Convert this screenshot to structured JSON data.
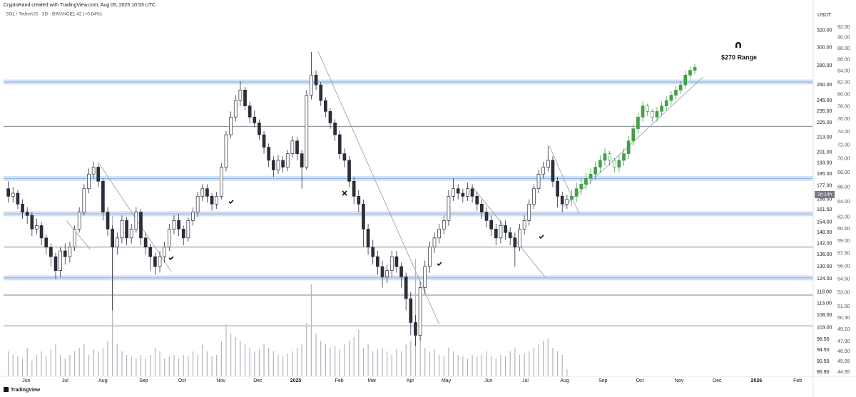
{
  "chart_data": {
    "type": "candlestick",
    "created": "CryptoRand created with TradingView.com, Aug 05, 2025 10:53 UTC",
    "symbol": "SOL / TetherUS · 3D · BINANCE",
    "change": "+1.42 (+0.84%)",
    "currency": "USDT",
    "countdown": "2d 14h",
    "annotation": "$270 Range",
    "branding": "TradingView",
    "log_scale": true,
    "ylim": [
      85.5,
      331.4
    ],
    "yticks": [
      {
        "value": 320,
        "label": "320.00"
      },
      {
        "value": 300,
        "label": "300.00"
      },
      {
        "value": 280,
        "label": "280.00"
      },
      {
        "value": 260,
        "label": "260.00"
      },
      {
        "value": 245,
        "label": "245.00"
      },
      {
        "value": 235,
        "label": "235.00"
      },
      {
        "value": 225,
        "label": "225.00"
      },
      {
        "value": 213,
        "label": "213.00"
      },
      {
        "value": 201,
        "label": "201.00"
      },
      {
        "value": 193,
        "label": "193.00"
      },
      {
        "value": 185,
        "label": "185.00"
      },
      {
        "value": 177,
        "label": "177.00"
      },
      {
        "value": 168,
        "label": "168.00"
      },
      {
        "value": 161.5,
        "label": "161.50"
      },
      {
        "value": 154,
        "label": "154.00"
      },
      {
        "value": 148,
        "label": "148.00"
      },
      {
        "value": 142,
        "label": "142.00"
      },
      {
        "value": 136,
        "label": "136.00"
      },
      {
        "value": 130,
        "label": "130.00"
      },
      {
        "value": 124,
        "label": "124.00"
      },
      {
        "value": 118,
        "label": "118.00"
      },
      {
        "value": 113,
        "label": "113.00"
      },
      {
        "value": 108,
        "label": "108.00"
      },
      {
        "value": 103,
        "label": "103.00"
      },
      {
        "value": 98.5,
        "label": "98.50"
      },
      {
        "value": 94.5,
        "label": "94.50"
      },
      {
        "value": 90.5,
        "label": "90.50"
      },
      {
        "value": 86.9,
        "label": "86.90"
      }
    ],
    "y2lim": [
      44.55,
      93.1
    ],
    "y2ticks": [
      {
        "value": 92,
        "label": "92.00"
      },
      {
        "value": 90,
        "label": "90.00"
      },
      {
        "value": 88,
        "label": "88.00"
      },
      {
        "value": 86,
        "label": "86.00"
      },
      {
        "value": 84,
        "label": "84.00"
      },
      {
        "value": 82,
        "label": "82.00"
      },
      {
        "value": 80,
        "label": "80.00"
      },
      {
        "value": 78,
        "label": "78.00"
      },
      {
        "value": 76,
        "label": "76.00"
      },
      {
        "value": 74,
        "label": "74.00"
      },
      {
        "value": 72,
        "label": "72.00"
      },
      {
        "value": 70,
        "label": "70.00"
      },
      {
        "value": 68,
        "label": "68.00"
      },
      {
        "value": 66,
        "label": "66.00"
      },
      {
        "value": 64,
        "label": "64.00"
      },
      {
        "value": 62,
        "label": "62.00"
      },
      {
        "value": 60.5,
        "label": "60.50"
      },
      {
        "value": 59,
        "label": "59.00"
      },
      {
        "value": 57.5,
        "label": "57.50"
      },
      {
        "value": 56,
        "label": "56.00"
      },
      {
        "value": 54.5,
        "label": "54.50"
      },
      {
        "value": 53,
        "label": "53.00"
      },
      {
        "value": 51.5,
        "label": "51.50"
      },
      {
        "value": 50.3,
        "label": "50.30"
      },
      {
        "value": 49.1,
        "label": "49.10"
      },
      {
        "value": 47.9,
        "label": "47.90"
      },
      {
        "value": 46.9,
        "label": "46.90"
      },
      {
        "value": 45.95,
        "label": "45.95"
      },
      {
        "value": 44.95,
        "label": "44.95"
      }
    ],
    "xlim": [
      -1,
      170
    ],
    "xticks": [
      {
        "value": 3.8,
        "label": "Jun"
      },
      {
        "value": 12,
        "label": "Jul"
      },
      {
        "value": 20,
        "label": "Aug"
      },
      {
        "value": 28.6,
        "label": "Sep"
      },
      {
        "value": 36.7,
        "label": "Oct"
      },
      {
        "value": 44.9,
        "label": "Nov"
      },
      {
        "value": 52.7,
        "label": "Dec"
      },
      {
        "value": 60.7,
        "label": "2025"
      },
      {
        "value": 69.9,
        "label": "Feb"
      },
      {
        "value": 76.8,
        "label": "Mar"
      },
      {
        "value": 84.9,
        "label": "Apr"
      },
      {
        "value": 92.5,
        "label": "May"
      },
      {
        "value": 101.4,
        "label": "Jun"
      },
      {
        "value": 109.2,
        "label": "Jul"
      },
      {
        "value": 117.5,
        "label": "Aug"
      },
      {
        "value": 125.6,
        "label": "Sep"
      },
      {
        "value": 133.4,
        "label": "Oct"
      },
      {
        "value": 141.7,
        "label": "Nov"
      },
      {
        "value": 149.7,
        "label": "Dec"
      },
      {
        "value": 158,
        "label": "2026"
      },
      {
        "value": 166.7,
        "label": "Feb"
      }
    ],
    "candles": {
      "up_color": "#ffffff",
      "down_color": "#2a2e39",
      "outline": "#2a2e39",
      "open": [
        175,
        170,
        172,
        165,
        160,
        158,
        150,
        152,
        145,
        140,
        135,
        128,
        138,
        135,
        140,
        150,
        160,
        175,
        185,
        190,
        180,
        160,
        150,
        140,
        145,
        155,
        145,
        150,
        160,
        145,
        140,
        135,
        130,
        135,
        140,
        150,
        155,
        150,
        145,
        155,
        160,
        170,
        175,
        170,
        165,
        170,
        190,
        215,
        230,
        245,
        255,
        240,
        230,
        225,
        215,
        205,
        195,
        188,
        195,
        190,
        200,
        210,
        200,
        190,
        250,
        270,
        260,
        245,
        235,
        225,
        215,
        200,
        195,
        180,
        170,
        165,
        150,
        140,
        135,
        130,
        125,
        128,
        135,
        130,
        125,
        115,
        105,
        100,
        120,
        130,
        140,
        145,
        150,
        155,
        170,
        175,
        172,
        170,
        175,
        170,
        165,
        160,
        155,
        150,
        145,
        152,
        148,
        145,
        140,
        150,
        155,
        165,
        175,
        185,
        190,
        195,
        180,
        170,
        165
      ],
      "high": [
        180,
        176,
        174,
        168,
        163,
        160,
        156,
        154,
        147,
        142,
        137,
        140,
        142,
        143,
        152,
        163,
        178,
        189,
        194,
        192,
        182,
        163,
        152,
        148,
        158,
        157,
        153,
        163,
        162,
        148,
        142,
        137,
        138,
        143,
        153,
        158,
        159,
        152,
        157,
        163,
        173,
        178,
        178,
        172,
        173,
        193,
        218,
        235,
        250,
        264,
        258,
        244,
        236,
        228,
        218,
        208,
        198,
        199,
        198,
        203,
        214,
        213,
        203,
        255,
        295,
        275,
        263,
        248,
        238,
        228,
        218,
        204,
        198,
        183,
        174,
        168,
        153,
        144,
        138,
        133,
        131,
        138,
        138,
        132,
        127,
        118,
        108,
        123,
        133,
        143,
        148,
        153,
        158,
        174,
        182,
        178,
        175,
        179,
        178,
        173,
        168,
        163,
        158,
        153,
        155,
        155,
        151,
        148,
        153,
        158,
        168,
        178,
        188,
        194,
        206,
        198,
        183,
        173,
        171
      ],
      "low": [
        166,
        166,
        162,
        156,
        153,
        146,
        147,
        141,
        136,
        130,
        124,
        125,
        131,
        132,
        138,
        148,
        158,
        172,
        182,
        176,
        155,
        146,
        110,
        136,
        142,
        141,
        142,
        148,
        141,
        136,
        128,
        126,
        127,
        132,
        138,
        147,
        146,
        141,
        143,
        152,
        157,
        167,
        166,
        161,
        162,
        168,
        187,
        212,
        226,
        240,
        236,
        225,
        221,
        211,
        200,
        190,
        183,
        185,
        186,
        187,
        197,
        195,
        175,
        188,
        246,
        255,
        240,
        230,
        220,
        210,
        196,
        190,
        176,
        165,
        160,
        140,
        136,
        131,
        126,
        120,
        122,
        125,
        127,
        120,
        110,
        100,
        96,
        98,
        117,
        127,
        137,
        142,
        147,
        152,
        167,
        168,
        166,
        167,
        166,
        161,
        156,
        151,
        146,
        141,
        142,
        144,
        141,
        130,
        138,
        147,
        152,
        162,
        172,
        182,
        187,
        176,
        163,
        160,
        162
      ],
      "close": [
        170,
        172,
        165,
        160,
        158,
        150,
        152,
        145,
        140,
        135,
        128,
        138,
        135,
        140,
        150,
        160,
        175,
        185,
        190,
        180,
        160,
        150,
        140,
        145,
        155,
        145,
        150,
        160,
        145,
        140,
        135,
        130,
        135,
        140,
        150,
        155,
        150,
        145,
        155,
        160,
        170,
        175,
        170,
        165,
        170,
        190,
        215,
        230,
        245,
        255,
        240,
        230,
        225,
        215,
        205,
        195,
        188,
        195,
        190,
        200,
        210,
        200,
        190,
        250,
        270,
        260,
        245,
        235,
        225,
        215,
        200,
        195,
        180,
        170,
        165,
        150,
        140,
        135,
        130,
        125,
        128,
        135,
        130,
        125,
        115,
        105,
        100,
        120,
        130,
        140,
        145,
        150,
        155,
        170,
        175,
        172,
        170,
        175,
        170,
        165,
        160,
        155,
        150,
        145,
        152,
        148,
        145,
        140,
        150,
        155,
        165,
        175,
        185,
        190,
        195,
        180,
        170,
        165,
        168
      ]
    },
    "projection": {
      "color": "#43a047",
      "open": [
        168,
        170,
        175,
        178,
        182,
        185,
        190,
        195,
        200,
        195,
        190,
        195,
        200,
        210,
        220,
        230,
        240,
        235,
        230,
        235,
        240,
        245,
        250,
        255,
        260,
        270,
        275
      ],
      "high": [
        174,
        179,
        182,
        186,
        189,
        194,
        199,
        204,
        202,
        197,
        199,
        204,
        214,
        224,
        234,
        244,
        242,
        237,
        239,
        244,
        249,
        254,
        259,
        264,
        274,
        279,
        282
      ],
      "low": [
        164,
        166,
        171,
        174,
        178,
        181,
        186,
        191,
        191,
        186,
        186,
        191,
        196,
        206,
        216,
        226,
        231,
        226,
        226,
        231,
        236,
        241,
        246,
        251,
        256,
        266,
        271
      ],
      "close": [
        170,
        175,
        178,
        182,
        185,
        190,
        195,
        200,
        195,
        190,
        195,
        200,
        210,
        220,
        230,
        240,
        235,
        230,
        235,
        240,
        245,
        250,
        255,
        260,
        270,
        275,
        278
      ]
    },
    "volume": {
      "color": "#b2b5be",
      "values": [
        35,
        30,
        28,
        25,
        40,
        22,
        30,
        35,
        28,
        38,
        45,
        30,
        25,
        30,
        35,
        40,
        45,
        30,
        38,
        35,
        40,
        50,
        225,
        45,
        35,
        30,
        28,
        25,
        30,
        25,
        30,
        40,
        35,
        25,
        28,
        30,
        25,
        30,
        28,
        35,
        30,
        45,
        35,
        28,
        30,
        50,
        73,
        60,
        55,
        50,
        45,
        40,
        35,
        38,
        45,
        40,
        35,
        30,
        28,
        32,
        35,
        40,
        45,
        75,
        129,
        60,
        50,
        45,
        40,
        42,
        38,
        45,
        50,
        55,
        65,
        40,
        45,
        35,
        38,
        40,
        35,
        30,
        38,
        35,
        45,
        50,
        165,
        55,
        40,
        35,
        38,
        30,
        28,
        40,
        35,
        30,
        28,
        25,
        30,
        28,
        30,
        35,
        28,
        25,
        30,
        28,
        35,
        40,
        30,
        32,
        35,
        40,
        45,
        50,
        53,
        40,
        35,
        30,
        10
      ]
    },
    "levels": {
      "band_color": "#c3d8f2",
      "line_color": "#5a5e6a",
      "bands": [
        263,
        182,
        159,
        124.5
      ],
      "lines": [
        222,
        140,
        116.6,
        103.7
      ]
    },
    "trendline_color": "#9598a1",
    "trendlines": [
      [
        19,
        193.5,
        34.4,
        127.6
      ],
      [
        12.3,
        154.8,
        17.3,
        138.8
      ],
      [
        65.4,
        295.8,
        91,
        104.3
      ],
      [
        98.1,
        176,
        113.5,
        124.5
      ],
      [
        114.3,
        205.8,
        120.6,
        159
      ],
      [
        117.3,
        163.4,
        146.7,
        268
      ]
    ]
  }
}
